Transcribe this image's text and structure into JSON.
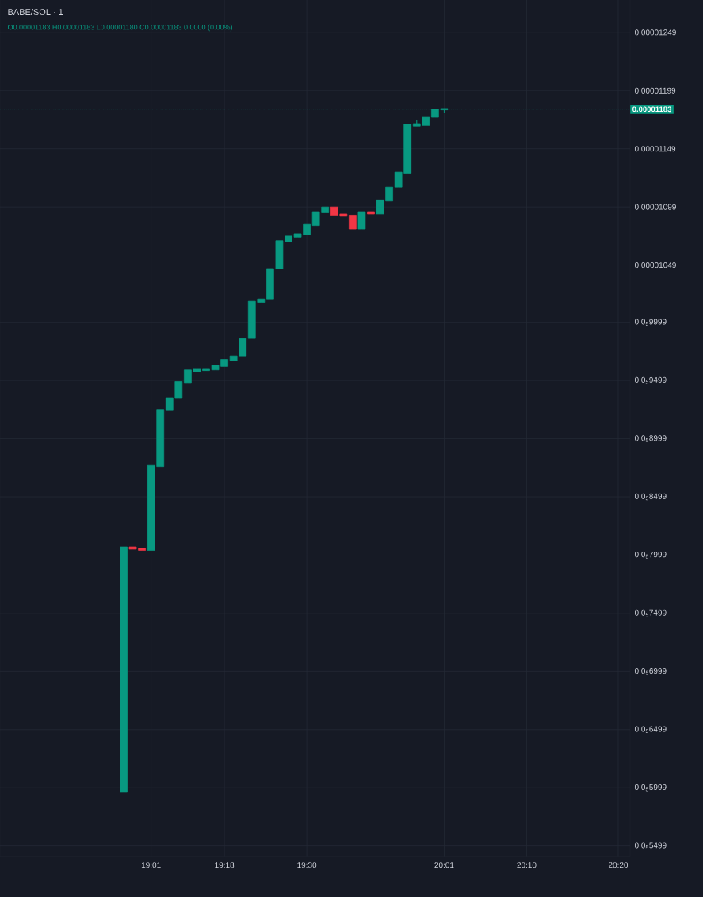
{
  "chart_data": {
    "type": "candlestick",
    "title": "BABE/SOL · 1",
    "annotations": [
      "O0.00001183 H0.00001183 L0.00001180 C0.00001183 0.0000 (0.00%)"
    ],
    "categories": [
      null,
      null,
      null,
      "19:01",
      null,
      null,
      null,
      null,
      null,
      null,
      null,
      "19:18",
      null,
      null,
      null,
      null,
      null,
      null,
      null,
      null,
      "19:30",
      null,
      null,
      null,
      null,
      null,
      null,
      null,
      null,
      null,
      null,
      null,
      null,
      null,
      null,
      "20:01",
      null,
      null,
      null,
      null,
      null,
      null,
      null,
      null,
      "20:10",
      null,
      null,
      null,
      null,
      null,
      null,
      null,
      null,
      null,
      "20:20"
    ],
    "ohlc": [
      [
        5.96e-06,
        8.07e-06,
        5.96e-06,
        8.07e-06
      ],
      [
        8.07e-06,
        8.07e-06,
        8.05e-06,
        8.05e-06
      ],
      [
        8.06e-06,
        8.06e-06,
        8.04e-06,
        8.04e-06
      ],
      [
        8.04e-06,
        8.77e-06,
        8.04e-06,
        8.77e-06
      ],
      [
        8.76e-06,
        9.25e-06,
        8.76e-06,
        9.25e-06
      ],
      [
        9.24e-06,
        9.35e-06,
        9.24e-06,
        9.35e-06
      ],
      [
        9.35e-06,
        9.49e-06,
        9.35e-06,
        9.49e-06
      ],
      [
        9.48e-06,
        9.59e-06,
        9.48e-06,
        9.59e-06
      ],
      [
        9.58e-06,
        9.59e-06,
        9.57e-06,
        9.59e-06
      ],
      [
        9.59e-06,
        9.59e-06,
        9.59e-06,
        9.59e-06
      ],
      [
        9.59e-06,
        9.63e-06,
        9.59e-06,
        9.63e-06
      ],
      [
        9.62e-06,
        9.68e-06,
        9.62e-06,
        9.68e-06
      ],
      [
        9.67e-06,
        9.71e-06,
        9.67e-06,
        9.71e-06
      ],
      [
        9.71e-06,
        9.86e-06,
        9.71e-06,
        9.86e-06
      ],
      [
        9.86e-06,
        1.018e-05,
        9.86e-06,
        1.018e-05
      ],
      [
        1.017e-05,
        1.02e-05,
        1.017e-05,
        1.02e-05
      ],
      [
        1.02e-05,
        1.046e-05,
        1.02e-05,
        1.046e-05
      ],
      [
        1.046e-05,
        1.07e-05,
        1.046e-05,
        1.07e-05
      ],
      [
        1.069e-05,
        1.074e-05,
        1.069e-05,
        1.074e-05
      ],
      [
        1.073e-05,
        1.076e-05,
        1.073e-05,
        1.076e-05
      ],
      [
        1.075e-05,
        1.084e-05,
        1.075e-05,
        1.084e-05
      ],
      [
        1.083e-05,
        1.095e-05,
        1.083e-05,
        1.095e-05
      ],
      [
        1.094e-05,
        1.099e-05,
        1.094e-05,
        1.099e-05
      ],
      [
        1.099e-05,
        1.099e-05,
        1.092e-05,
        1.092e-05
      ],
      [
        1.093e-05,
        1.093e-05,
        1.091e-05,
        1.091e-05
      ],
      [
        1.092e-05,
        1.092e-05,
        1.08e-05,
        1.08e-05
      ],
      [
        1.08e-05,
        1.095e-05,
        1.08e-05,
        1.095e-05
      ],
      [
        1.095e-05,
        1.095e-05,
        1.093e-05,
        1.093e-05
      ],
      [
        1.093e-05,
        1.105e-05,
        1.093e-05,
        1.105e-05
      ],
      [
        1.104e-05,
        1.116e-05,
        1.104e-05,
        1.116e-05
      ],
      [
        1.116e-05,
        1.129e-05,
        1.116e-05,
        1.129e-05
      ],
      [
        1.128e-05,
        1.17e-05,
        1.128e-05,
        1.17e-05
      ],
      [
        1.169e-05,
        1.174e-05,
        1.169e-05,
        1.17e-05
      ],
      [
        1.169e-05,
        1.176e-05,
        1.169e-05,
        1.176e-05
      ],
      [
        1.176e-05,
        1.183e-05,
        1.176e-05,
        1.183e-05
      ],
      [
        1.183e-05,
        1.183e-05,
        1.18e-05,
        1.183e-05
      ],
      null,
      null,
      null,
      null,
      null,
      null,
      null,
      null,
      null,
      null,
      null,
      null,
      null,
      null,
      null,
      null,
      null,
      null,
      null
    ],
    "colors": [
      "#089981",
      "#f23645",
      "#f23645",
      "#089981",
      "#089981",
      "#089981",
      "#089981",
      "#089981",
      "#089981",
      "#089981",
      "#089981",
      "#089981",
      "#089981",
      "#089981",
      "#089981",
      "#089981",
      "#089981",
      "#089981",
      "#089981",
      "#089981",
      "#089981",
      "#089981",
      "#089981",
      "#f23645",
      "#f23645",
      "#f23645",
      "#089981",
      "#f23645",
      "#089981",
      "#089981",
      "#089981",
      "#089981",
      "#089981",
      "#089981",
      "#089981",
      "#089981",
      null,
      null,
      null,
      null,
      null,
      null,
      null,
      null,
      null,
      null,
      null,
      null,
      null,
      null,
      null,
      null,
      null,
      null,
      null
    ],
    "ylim": [
      5.411e-06,
      1.288e-05
    ],
    "yticks": [
      {
        "value": 1.249e-05,
        "label": "0.00001249"
      },
      {
        "value": 1.199e-05,
        "label": "0.00001199"
      },
      {
        "value": 1.149e-05,
        "label": "0.00001149"
      },
      {
        "value": 1.099e-05,
        "label": "0.00001099"
      },
      {
        "value": 1.049e-05,
        "label": "0.00001049"
      },
      {
        "value": 9.999e-06,
        "label": "0.0$_{5}$9999"
      },
      {
        "value": 9.499e-06,
        "label": "0.0$_{5}$9499"
      },
      {
        "value": 8.999e-06,
        "label": "0.0$_{5}$8999"
      },
      {
        "value": 8.499e-06,
        "label": "0.0$_{5}$8499"
      },
      {
        "value": 7.999e-06,
        "label": "0.0$_{5}$7999"
      },
      {
        "value": 7.499e-06,
        "label": "0.0$_{5}$7499"
      },
      {
        "value": 6.999e-06,
        "label": "0.0$_{5}$6999"
      },
      {
        "value": 6.499e-06,
        "label": "0.0$_{5}$6499"
      },
      {
        "value": 5.999e-06,
        "label": "0.0$_{5}$5999"
      },
      {
        "value": 5.499e-06,
        "label": "0.0$_{5}$5499"
      }
    ],
    "grid": true,
    "ref_lines": [
      {
        "axis": "y",
        "value": 1.183e-05,
        "label": "0.00001183",
        "color": "#089981",
        "line_style": "dotted"
      }
    ]
  }
}
